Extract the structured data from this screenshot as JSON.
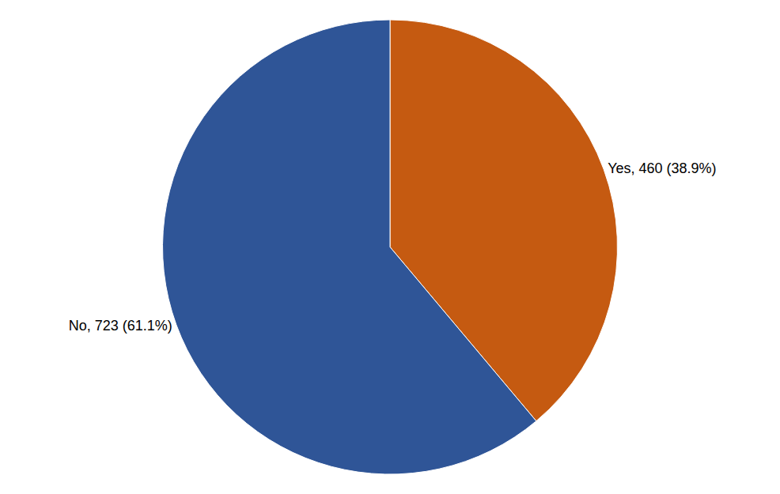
{
  "chart_data": {
    "type": "pie",
    "categories": [
      "Yes",
      "No"
    ],
    "values": [
      460,
      723
    ],
    "value_labels": [
      "Yes, 460 (38.9%)",
      "No, 723 (61.1%)"
    ],
    "colors": [
      "#c55a11",
      "#2f5597"
    ],
    "data_labels": true
  }
}
